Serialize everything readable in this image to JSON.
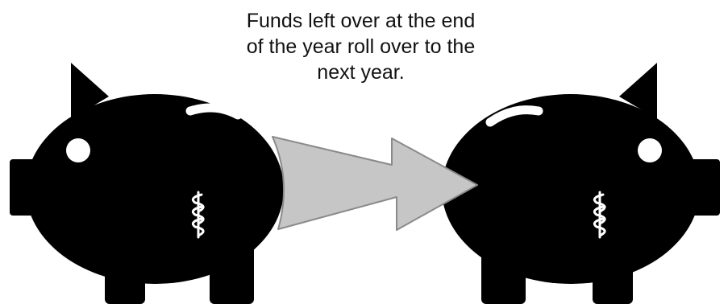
{
  "caption": {
    "lines": [
      "Funds left over at the end",
      "of the year roll over to the",
      "next year."
    ]
  },
  "colors": {
    "piggy": "#000000",
    "arrow_fill": "#c6c6c6",
    "arrow_stroke": "#8a8a8a",
    "highlight": "#ffffff"
  },
  "icons": {
    "left_bank": "piggy-bank-icon",
    "right_bank": "piggy-bank-icon",
    "transfer": "arrow-right-icon",
    "currency": "dollar-sign-icon"
  }
}
